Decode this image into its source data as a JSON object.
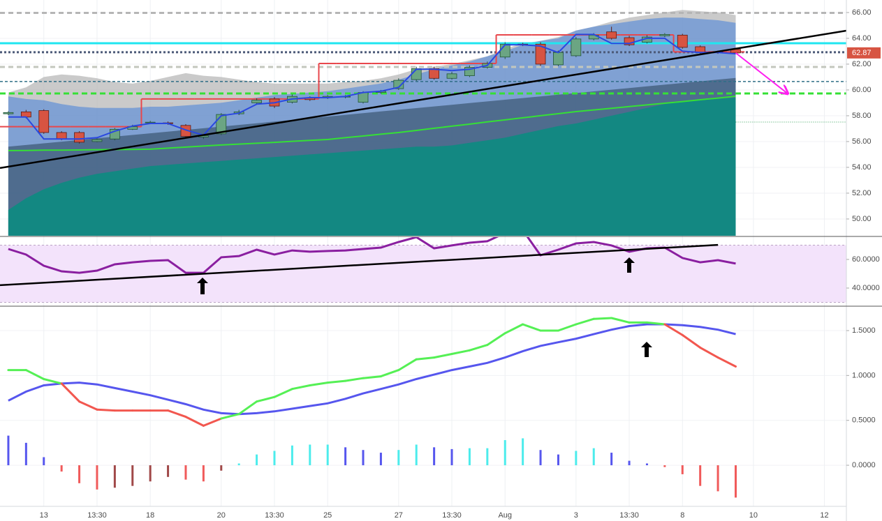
{
  "chart_data": [
    {
      "type": "candlestick",
      "x": [
        0,
        1,
        2,
        3,
        4,
        5,
        6,
        7,
        8,
        9,
        10,
        11,
        12,
        13,
        14,
        15,
        16,
        17,
        18,
        19,
        20,
        21,
        22,
        23,
        24,
        25,
        26,
        27,
        28,
        29,
        30,
        31,
        32,
        33,
        34,
        35,
        36,
        37,
        38,
        39,
        40,
        41
      ],
      "open": [
        58.15,
        58.3,
        58.4,
        56.7,
        56.7,
        56.0,
        56.2,
        56.95,
        57.45,
        57.45,
        57.25,
        56.35,
        56.6,
        58.15,
        59.0,
        59.3,
        59.05,
        59.4,
        59.4,
        59.45,
        59.05,
        59.8,
        60.1,
        60.8,
        61.65,
        60.9,
        61.1,
        61.75,
        62.55,
        63.55,
        63.55,
        61.95,
        62.65,
        63.95,
        64.5,
        64.05,
        63.7,
        64.2,
        64.25,
        63.35,
        62.95,
        63.15
      ],
      "high": [
        58.35,
        58.45,
        58.5,
        56.8,
        56.8,
        56.25,
        57.05,
        57.3,
        57.6,
        57.55,
        57.35,
        56.55,
        58.2,
        58.45,
        59.35,
        59.45,
        59.65,
        59.5,
        59.6,
        59.6,
        59.9,
        60.0,
        60.9,
        61.8,
        61.8,
        61.4,
        61.9,
        62.2,
        63.7,
        63.65,
        63.7,
        63.05,
        64.1,
        64.4,
        64.9,
        64.2,
        64.25,
        64.4,
        64.35,
        63.45,
        63.05,
        63.25
      ],
      "low": [
        58.05,
        57.8,
        56.6,
        56.1,
        55.85,
        55.95,
        56.1,
        56.9,
        57.35,
        57.3,
        56.3,
        56.2,
        56.5,
        58.05,
        58.9,
        58.6,
        58.95,
        59.15,
        59.3,
        59.35,
        58.95,
        59.7,
        60.0,
        60.7,
        60.8,
        60.8,
        61.0,
        61.65,
        62.4,
        63.4,
        61.85,
        61.85,
        62.55,
        63.85,
        63.9,
        63.4,
        63.6,
        64.1,
        63.2,
        62.8,
        62.8,
        62.8
      ],
      "close": [
        58.25,
        57.9,
        56.7,
        56.2,
        55.95,
        56.15,
        56.95,
        57.15,
        57.5,
        57.4,
        56.4,
        56.45,
        58.1,
        58.3,
        59.2,
        58.75,
        59.5,
        59.25,
        59.5,
        59.5,
        59.8,
        59.9,
        60.75,
        61.65,
        60.9,
        61.25,
        61.75,
        62.05,
        63.55,
        63.5,
        62.0,
        62.9,
        63.95,
        64.25,
        64.0,
        63.5,
        64.1,
        64.3,
        63.3,
        62.9,
        62.9,
        62.87
      ],
      "up_color": "#6ba583",
      "down_color": "#d75442",
      "up_border": "#225437",
      "down_border": "#5b1a13",
      "series": [
        {
          "kind": "area",
          "color": "#b8b8b8",
          "opacity": 0.75,
          "values": [
            59.8,
            60.2,
            61.0,
            61.2,
            61.1,
            60.9,
            60.6,
            60.5,
            60.7,
            61.0,
            61.3,
            61.1,
            61.0,
            60.8,
            60.6,
            60.5,
            60.5,
            60.5,
            60.5,
            60.6,
            60.7,
            60.9,
            61.2,
            61.6,
            61.8,
            62.0,
            62.3,
            62.6,
            63.2,
            63.6,
            63.8,
            64.1,
            64.6,
            64.9,
            65.3,
            65.6,
            65.8,
            66.0,
            66.2,
            66.1,
            66.0,
            65.8
          ]
        },
        {
          "kind": "area",
          "color": "#4f86d9",
          "opacity": 0.6,
          "values": [
            59.5,
            59.3,
            59.2,
            58.9,
            58.7,
            58.6,
            58.6,
            58.6,
            58.7,
            58.7,
            58.8,
            58.9,
            59.0,
            59.2,
            59.4,
            59.6,
            59.7,
            59.8,
            59.9,
            60.1,
            60.3,
            60.5,
            60.8,
            61.2,
            61.6,
            61.9,
            62.2,
            62.6,
            63.0,
            63.5,
            63.8,
            64.0,
            64.6,
            64.9,
            65.1,
            65.3,
            65.5,
            65.6,
            65.6,
            65.5,
            65.4,
            65.2
          ]
        },
        {
          "kind": "area",
          "color": "#3a5570",
          "opacity": 0.7,
          "values": [
            55.6,
            55.73,
            55.86,
            55.99,
            56.12,
            56.25,
            56.38,
            56.51,
            56.64,
            56.77,
            56.9,
            57.03,
            57.16,
            57.29,
            57.42,
            57.55,
            57.68,
            57.81,
            57.94,
            58.07,
            58.2,
            58.33,
            58.46,
            58.59,
            58.72,
            58.85,
            58.98,
            59.11,
            59.24,
            59.37,
            59.5,
            59.63,
            59.76,
            59.89,
            60.02,
            60.15,
            60.28,
            60.41,
            60.54,
            60.67,
            60.8,
            60.93
          ]
        },
        {
          "kind": "area",
          "color": "#138882",
          "opacity": 1,
          "values": [
            50.7,
            51.6,
            52.3,
            52.8,
            53.2,
            53.5,
            53.7,
            53.9,
            54.1,
            54.2,
            54.3,
            54.4,
            54.5,
            54.6,
            54.7,
            54.8,
            54.9,
            55.0,
            55.1,
            55.2,
            55.3,
            55.4,
            55.5,
            55.6,
            55.6,
            55.7,
            55.9,
            56.1,
            56.3,
            56.6,
            56.9,
            57.2,
            57.4,
            57.7,
            58.0,
            58.3,
            58.6,
            58.9,
            59.1,
            59.2,
            59.3,
            59.4
          ]
        },
        {
          "kind": "line",
          "color": "#35e035",
          "width": 2,
          "values": [
            55.3,
            55.31,
            55.33,
            55.34,
            55.35,
            55.37,
            55.38,
            55.39,
            55.41,
            55.49,
            55.57,
            55.65,
            55.73,
            55.8,
            55.87,
            55.94,
            56.02,
            56.09,
            56.16,
            56.3,
            56.43,
            56.57,
            56.7,
            56.86,
            57.03,
            57.19,
            57.35,
            57.52,
            57.68,
            57.84,
            58.0,
            58.16,
            58.32,
            58.45,
            58.58,
            58.71,
            58.84,
            58.97,
            59.1,
            59.24,
            59.37,
            59.51
          ]
        },
        {
          "kind": "step",
          "color": "#e8474c",
          "width": 2,
          "values": [
            57.15,
            57.15,
            57.15,
            57.15,
            57.15,
            57.15,
            57.15,
            57.15,
            59.3,
            59.3,
            59.3,
            59.3,
            59.3,
            59.3,
            59.3,
            59.3,
            59.3,
            59.3,
            62.05,
            62.05,
            62.05,
            62.05,
            62.05,
            62.05,
            62.05,
            62.05,
            62.05,
            62.05,
            64.27,
            64.27,
            64.27,
            64.27,
            64.27,
            64.27,
            64.27,
            64.27,
            64.27,
            64.27,
            62.95,
            62.95,
            62.95,
            62.95
          ]
        },
        {
          "kind": "line",
          "color": "#2a48e0",
          "width": 2,
          "values": [
            57.9,
            57.9,
            56.2,
            56.2,
            56.2,
            56.3,
            56.8,
            57.2,
            57.4,
            57.4,
            56.9,
            56.5,
            58.0,
            58.2,
            58.9,
            59.0,
            59.3,
            59.4,
            59.4,
            59.5,
            59.8,
            59.9,
            60.2,
            61.6,
            61.6,
            61.5,
            61.6,
            61.9,
            63.5,
            63.5,
            63.4,
            62.9,
            64.3,
            64.3,
            63.6,
            63.6,
            64.0,
            64.0,
            63.0,
            62.9,
            62.9,
            62.8
          ]
        }
      ],
      "levels": [
        {
          "value": 65.97,
          "color": "#b5b5b5",
          "dash": "7 5",
          "width": 3
        },
        {
          "value": 63.62,
          "color": "#1fe6f0",
          "dash": "",
          "width": 3
        },
        {
          "value": 62.92,
          "color": "#4c5a78",
          "dash": "3 3",
          "width": 3
        },
        {
          "value": 61.78,
          "color": "#c3c7bd",
          "dash": "7 5",
          "width": 3
        },
        {
          "value": 60.65,
          "color": "#2f6e86",
          "dash": "4 3",
          "width": 1.5
        },
        {
          "value": 59.73,
          "color": "#35e035",
          "dash": "8 5",
          "width": 3
        },
        {
          "value": 57.51,
          "color": "#2f9e55",
          "dash": "1 2",
          "width": 1,
          "from": 41
        }
      ],
      "trendlines": [
        {
          "x": [
            -0.47,
            47.24
          ],
          "y": [
            53.95,
            64.59
          ],
          "color": "#000000"
        }
      ],
      "arrows": [
        {
          "x": [
            41,
            43.9
          ],
          "y": [
            62.87,
            59.75
          ],
          "color": "#ff1ef0"
        }
      ],
      "last_price": 62.87,
      "last_color": "#d75442",
      "xlim": [
        -0.47,
        47.24
      ],
      "ylim": [
        48.7,
        66.97
      ],
      "yticks": [
        {
          "value": 50,
          "label": "50.00"
        },
        {
          "value": 52,
          "label": "52.00"
        },
        {
          "value": 54,
          "label": "54.00"
        },
        {
          "value": 56,
          "label": "56.00"
        },
        {
          "value": 58,
          "label": "58.00"
        },
        {
          "value": 60,
          "label": "60.00"
        },
        {
          "value": 62,
          "label": "62.00"
        },
        {
          "value": 64,
          "label": "64.00"
        },
        {
          "value": 66,
          "label": "66.00"
        }
      ]
    },
    {
      "type": "line",
      "x": [
        0,
        1,
        2,
        3,
        4,
        5,
        6,
        7,
        8,
        9,
        10,
        11,
        12,
        13,
        14,
        15,
        16,
        17,
        18,
        19,
        20,
        21,
        22,
        23,
        24,
        25,
        26,
        27,
        28,
        29,
        30,
        31,
        32,
        33,
        34,
        35,
        36,
        37,
        38,
        39,
        40,
        41
      ],
      "values": [
        67.3,
        63.4,
        55.6,
        51.7,
        50.7,
        52.2,
        56.6,
        58.0,
        59.0,
        59.5,
        50.7,
        50.7,
        61.5,
        62.4,
        66.8,
        63.4,
        66.3,
        65.4,
        65.9,
        66.3,
        67.3,
        68.3,
        72.2,
        75.6,
        67.8,
        69.8,
        71.7,
        72.7,
        78.5,
        80.5,
        62.9,
        66.8,
        71.2,
        72.2,
        69.8,
        65.4,
        67.8,
        68.3,
        61.0,
        58.0,
        59.5,
        57.1
      ],
      "color": "#8a1fa0",
      "band": [
        30,
        70
      ],
      "band_color": "#f3e3fb",
      "trendlines": [
        {
          "x": [
            -0.47,
            40.0
          ],
          "y": [
            42.0,
            70.2
          ],
          "color": "#000000"
        }
      ],
      "xlim": [
        -0.47,
        47.24
      ],
      "ylim": [
        27.8,
        75.6
      ],
      "yticks": [
        {
          "value": 40,
          "label": "40.0000"
        },
        {
          "value": 60,
          "label": "60.0000"
        }
      ]
    },
    {
      "type": "macd",
      "x": [
        0,
        1,
        2,
        3,
        4,
        5,
        6,
        7,
        8,
        9,
        10,
        11,
        12,
        13,
        14,
        15,
        16,
        17,
        18,
        19,
        20,
        21,
        22,
        23,
        24,
        25,
        26,
        27,
        28,
        29,
        30,
        31,
        32,
        33,
        34,
        35,
        36,
        37,
        38,
        39,
        40,
        41
      ],
      "macd": {
        "values": [
          1.06,
          1.06,
          0.96,
          0.91,
          0.71,
          0.62,
          0.61,
          0.61,
          0.61,
          0.61,
          0.54,
          0.44,
          0.52,
          0.57,
          0.71,
          0.76,
          0.85,
          0.89,
          0.92,
          0.94,
          0.97,
          0.99,
          1.06,
          1.18,
          1.2,
          1.24,
          1.28,
          1.34,
          1.47,
          1.57,
          1.5,
          1.5,
          1.57,
          1.63,
          1.64,
          1.59,
          1.59,
          1.57,
          1.45,
          1.31,
          1.2,
          1.1
        ],
        "up_color": "#55f055",
        "down_color": "#f2574f"
      },
      "signal": {
        "values": [
          0.72,
          0.82,
          0.89,
          0.91,
          0.92,
          0.9,
          0.86,
          0.82,
          0.78,
          0.73,
          0.68,
          0.62,
          0.58,
          0.57,
          0.58,
          0.6,
          0.63,
          0.66,
          0.69,
          0.74,
          0.8,
          0.85,
          0.9,
          0.96,
          1.01,
          1.06,
          1.1,
          1.14,
          1.2,
          1.27,
          1.33,
          1.37,
          1.41,
          1.46,
          1.51,
          1.55,
          1.57,
          1.57,
          1.56,
          1.54,
          1.51,
          1.46
        ],
        "color": "#5656ee"
      },
      "histogram": {
        "values": [
          0.33,
          0.25,
          0.09,
          -0.07,
          -0.2,
          -0.27,
          -0.25,
          -0.23,
          -0.18,
          -0.13,
          -0.16,
          -0.18,
          -0.06,
          0.02,
          0.12,
          0.16,
          0.22,
          0.23,
          0.23,
          0.2,
          0.17,
          0.14,
          0.17,
          0.23,
          0.2,
          0.18,
          0.19,
          0.19,
          0.28,
          0.3,
          0.17,
          0.12,
          0.16,
          0.19,
          0.14,
          0.05,
          0.02,
          -0.02,
          -0.1,
          -0.23,
          -0.29,
          -0.36
        ],
        "colors": {
          "pos_up": "#4cecec",
          "pos_down": "#5656ee",
          "neg_down": "#f05a5a",
          "neg_up": "#a04848"
        }
      },
      "xlim": [
        -0.47,
        47.24
      ],
      "ylim": [
        -0.45,
        1.764
      ],
      "yticks": [
        {
          "value": 0,
          "label": "0.0000"
        },
        {
          "value": 0.5,
          "label": "0.5000"
        },
        {
          "value": 1,
          "label": "1.0000"
        },
        {
          "value": 1.5,
          "label": "1.5000"
        }
      ],
      "xticks": [
        {
          "value": 2,
          "label": "13"
        },
        {
          "value": 5,
          "label": "13:30"
        },
        {
          "value": 8,
          "label": "18"
        },
        {
          "value": 12,
          "label": "20"
        },
        {
          "value": 15,
          "label": "13:30"
        },
        {
          "value": 18,
          "label": "25"
        },
        {
          "value": 22,
          "label": "27"
        },
        {
          "value": 25,
          "label": "13:30"
        },
        {
          "value": 28,
          "label": "Aug"
        },
        {
          "value": 32,
          "label": "3"
        },
        {
          "value": 35,
          "label": "13:30"
        },
        {
          "value": 38,
          "label": "8"
        },
        {
          "value": 42,
          "label": "10"
        },
        {
          "value": 46,
          "label": "12"
        }
      ]
    }
  ]
}
